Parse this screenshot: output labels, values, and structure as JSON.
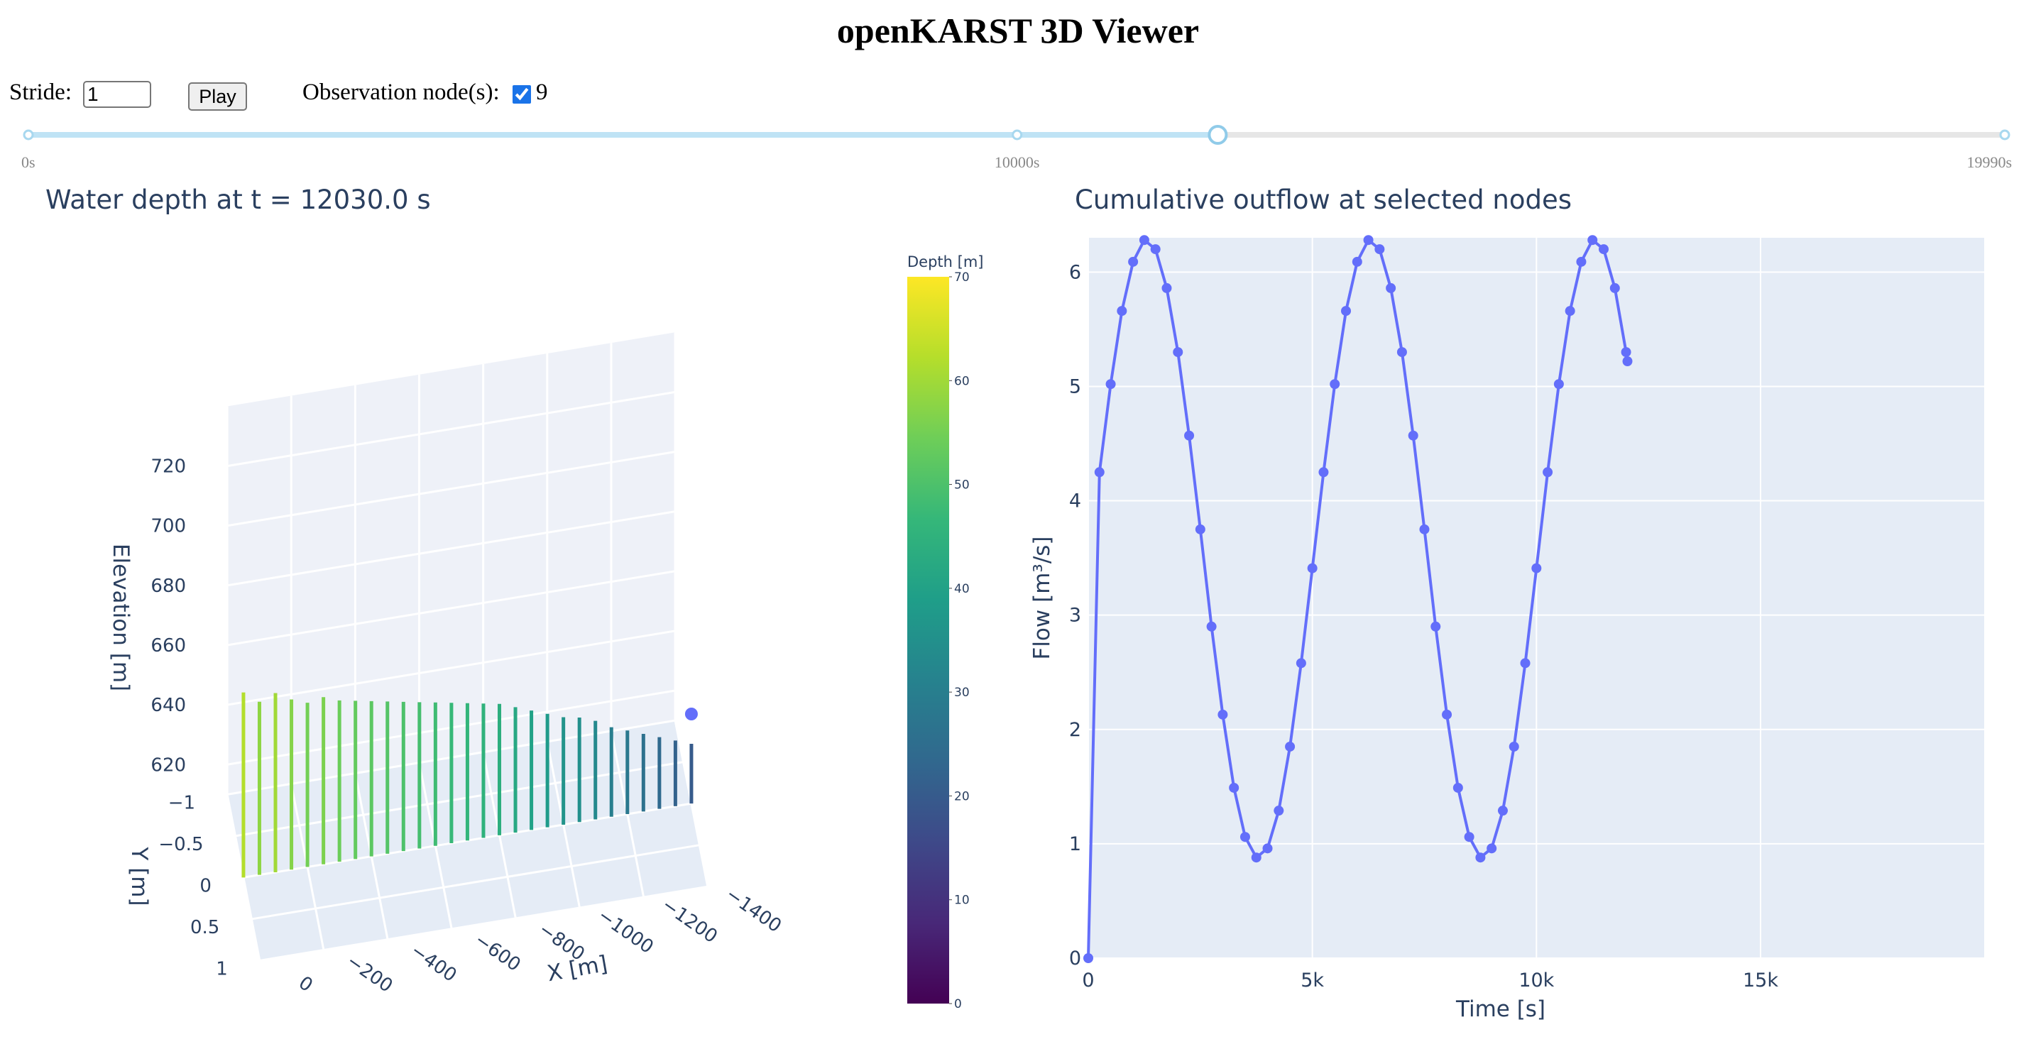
{
  "header": {
    "title": "openKARST 3D Viewer"
  },
  "controls": {
    "stride_label": "Stride:",
    "stride_value": "1",
    "play_label": "Play",
    "observation_label": "Observation node(s):",
    "observation_checked": true,
    "observation_nodes": [
      "9"
    ]
  },
  "slider": {
    "min": 0,
    "max": 19990,
    "value": 12030,
    "ticks": [
      {
        "value": 0,
        "label": "0s"
      },
      {
        "value": 10000,
        "label": "10000s"
      },
      {
        "value": 19990,
        "label": "19990s"
      }
    ]
  },
  "chart_data": [
    {
      "type": "scatter3d",
      "title": "Water depth at t = 12030.0 s",
      "xlabel": "X [m]",
      "ylabel": "Y [m]",
      "zlabel": "Elevation [m]",
      "x": [
        0,
        -50,
        -100,
        -150,
        -200,
        -250,
        -300,
        -350,
        -400,
        -450,
        -500,
        -550,
        -600,
        -650,
        -700,
        -750,
        -800,
        -850,
        -900,
        -950,
        -1000,
        -1050,
        -1100,
        -1150,
        -1200,
        -1250,
        -1300,
        -1350,
        -1400
      ],
      "values": [
        62,
        58,
        60,
        57,
        55,
        56,
        54,
        53,
        52,
        51,
        50,
        49,
        48,
        47,
        46,
        45,
        44,
        42,
        40,
        38,
        36,
        35,
        33,
        30,
        28,
        26,
        24,
        22,
        20
      ],
      "xlim": [
        0,
        -1400
      ],
      "ylim": [
        -1,
        1
      ],
      "zlim": [
        610,
        740
      ],
      "xticks": [
        0,
        {
          "value": -200,
          "label": "−200"
        },
        {
          "value": -400,
          "label": "−400"
        },
        {
          "value": -600,
          "label": "−600"
        },
        {
          "value": -800,
          "label": "−800"
        },
        {
          "value": -1000,
          "label": "−1000"
        },
        {
          "value": -1200,
          "label": "−1200"
        },
        {
          "value": -1400,
          "label": "−1400"
        }
      ],
      "yticks": [
        {
          "value": -1,
          "label": "−1"
        },
        {
          "value": -0.5,
          "label": "−0.5"
        },
        0,
        0.5,
        1
      ],
      "zticks": [
        620,
        640,
        660,
        680,
        700,
        720
      ],
      "observation_marker": {
        "x": -1400,
        "y": 0,
        "z": 640,
        "color": "#636efa"
      },
      "colorbar": {
        "title": "Depth [m]",
        "lim": [
          0,
          70
        ],
        "ticks": [
          0,
          10,
          20,
          30,
          40,
          50,
          60,
          70
        ],
        "colorscale": [
          "#440154",
          "#482878",
          "#3e4989",
          "#31688e",
          "#26828e",
          "#1f9e89",
          "#35b779",
          "#6ece58",
          "#b5de2b",
          "#fde725"
        ]
      }
    },
    {
      "type": "line",
      "title": "Cumulative outflow at selected nodes",
      "xlabel": "Time [s]",
      "ylabel": "Flow [m³/s]",
      "color": "#636efa",
      "x": [
        0,
        250,
        500,
        750,
        1000,
        1250,
        1500,
        1750,
        2000,
        2250,
        2500,
        2750,
        3000,
        3250,
        3500,
        3750,
        4000,
        4250,
        4500,
        4750,
        5000,
        5250,
        5500,
        5750,
        6000,
        6250,
        6500,
        6750,
        7000,
        7250,
        7500,
        7750,
        8000,
        8250,
        8500,
        8750,
        9000,
        9250,
        9500,
        9750,
        10000,
        10250,
        10500,
        10750,
        11000,
        11250,
        11500,
        11750,
        12000,
        12030
      ],
      "values": [
        0,
        4.25,
        5.02,
        5.66,
        6.09,
        6.28,
        6.2,
        5.86,
        5.3,
        4.57,
        3.75,
        2.9,
        2.13,
        1.49,
        1.06,
        0.88,
        0.96,
        1.29,
        1.85,
        2.58,
        3.41,
        4.25,
        5.02,
        5.66,
        6.09,
        6.28,
        6.2,
        5.86,
        5.3,
        4.57,
        3.75,
        2.9,
        2.13,
        1.49,
        1.06,
        0.88,
        0.96,
        1.29,
        1.85,
        2.58,
        3.41,
        4.25,
        5.02,
        5.66,
        6.09,
        6.28,
        6.2,
        5.86,
        5.3,
        5.22
      ],
      "xlim": [
        0,
        19990
      ],
      "ylim": [
        0,
        6.3
      ],
      "xticks": [
        0,
        {
          "value": 5000,
          "label": "5k"
        },
        {
          "value": 10000,
          "label": "10k"
        },
        {
          "value": 15000,
          "label": "15k"
        }
      ],
      "yticks": [
        0,
        1,
        2,
        3,
        4,
        5,
        6
      ],
      "grid": true
    }
  ]
}
